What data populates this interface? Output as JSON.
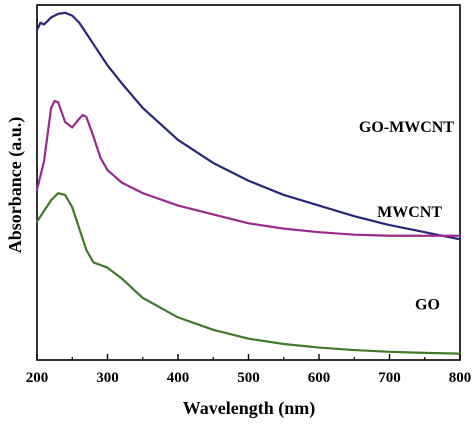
{
  "chart_data": {
    "type": "line",
    "title": "",
    "xlabel": "Wavelength (nm)",
    "ylabel": "Absorbance (a.u.)",
    "xlim": [
      200,
      800
    ],
    "ylim": [
      0,
      1
    ],
    "xticks": [
      200,
      300,
      400,
      500,
      600,
      700,
      800
    ],
    "yticks_shown": false,
    "grid": false,
    "legend": "none (inline labels)",
    "series": [
      {
        "name": "GO-MWCNT",
        "color": "#27277a",
        "label_pos": [
          800,
          0.62
        ],
        "points": [
          [
            200,
            0.93
          ],
          [
            205,
            0.95
          ],
          [
            210,
            0.945
          ],
          [
            215,
            0.955
          ],
          [
            220,
            0.965
          ],
          [
            230,
            0.975
          ],
          [
            240,
            0.978
          ],
          [
            250,
            0.97
          ],
          [
            260,
            0.95
          ],
          [
            270,
            0.92
          ],
          [
            280,
            0.89
          ],
          [
            300,
            0.83
          ],
          [
            320,
            0.78
          ],
          [
            350,
            0.71
          ],
          [
            400,
            0.62
          ],
          [
            450,
            0.555
          ],
          [
            500,
            0.505
          ],
          [
            550,
            0.465
          ],
          [
            600,
            0.435
          ],
          [
            650,
            0.405
          ],
          [
            700,
            0.38
          ],
          [
            750,
            0.36
          ],
          [
            800,
            0.34
          ]
        ]
      },
      {
        "name": "MWCNT",
        "color": "#9a2a8d",
        "label_pos": [
          783,
          0.38
        ],
        "points": [
          [
            200,
            0.48
          ],
          [
            210,
            0.56
          ],
          [
            220,
            0.71
          ],
          [
            225,
            0.73
          ],
          [
            230,
            0.726
          ],
          [
            240,
            0.67
          ],
          [
            250,
            0.655
          ],
          [
            260,
            0.68
          ],
          [
            265,
            0.69
          ],
          [
            270,
            0.685
          ],
          [
            280,
            0.63
          ],
          [
            290,
            0.57
          ],
          [
            300,
            0.535
          ],
          [
            320,
            0.5
          ],
          [
            350,
            0.47
          ],
          [
            400,
            0.435
          ],
          [
            450,
            0.41
          ],
          [
            500,
            0.385
          ],
          [
            550,
            0.37
          ],
          [
            600,
            0.36
          ],
          [
            650,
            0.353
          ],
          [
            700,
            0.35
          ],
          [
            750,
            0.35
          ],
          [
            800,
            0.35
          ]
        ]
      },
      {
        "name": "GO",
        "color": "#3e7a2a",
        "label_pos": [
          780,
          0.12
        ],
        "points": [
          [
            200,
            0.39
          ],
          [
            210,
            0.42
          ],
          [
            220,
            0.45
          ],
          [
            230,
            0.47
          ],
          [
            240,
            0.465
          ],
          [
            250,
            0.43
          ],
          [
            260,
            0.37
          ],
          [
            270,
            0.31
          ],
          [
            280,
            0.275
          ],
          [
            300,
            0.26
          ],
          [
            320,
            0.23
          ],
          [
            350,
            0.175
          ],
          [
            400,
            0.12
          ],
          [
            450,
            0.085
          ],
          [
            500,
            0.06
          ],
          [
            550,
            0.045
          ],
          [
            600,
            0.035
          ],
          [
            650,
            0.028
          ],
          [
            700,
            0.023
          ],
          [
            750,
            0.02
          ],
          [
            800,
            0.018
          ]
        ]
      }
    ]
  }
}
